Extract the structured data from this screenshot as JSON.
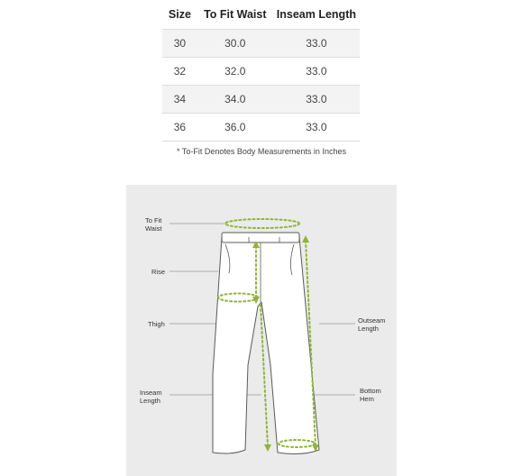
{
  "size_chart": {
    "headers": {
      "size": "Size",
      "waist": "To Fit Waist",
      "inseam": "Inseam Length"
    },
    "rows": [
      {
        "size": "30",
        "waist": "30.0",
        "inseam": "33.0"
      },
      {
        "size": "32",
        "waist": "32.0",
        "inseam": "33.0"
      },
      {
        "size": "34",
        "waist": "34.0",
        "inseam": "33.0"
      },
      {
        "size": "36",
        "waist": "36.0",
        "inseam": "33.0"
      }
    ],
    "note": "* To-Fit Denotes Body Measurements in Inches"
  },
  "diagram": {
    "labels": {
      "waist_line1": "To Fit",
      "waist_line2": "Waist",
      "rise": "Rise",
      "thigh": "Thigh",
      "outseam_line1": "Outseam",
      "outseam_line2": "Length",
      "inseam_line1": "Inseam",
      "inseam_line2": "Length",
      "hem_line1": "Bottom",
      "hem_line2": "Hem"
    },
    "colors": {
      "background": "#ebebeb",
      "measure": "#8db632",
      "outline": "#5a5a5a",
      "leader": "#9a9a9a"
    }
  }
}
